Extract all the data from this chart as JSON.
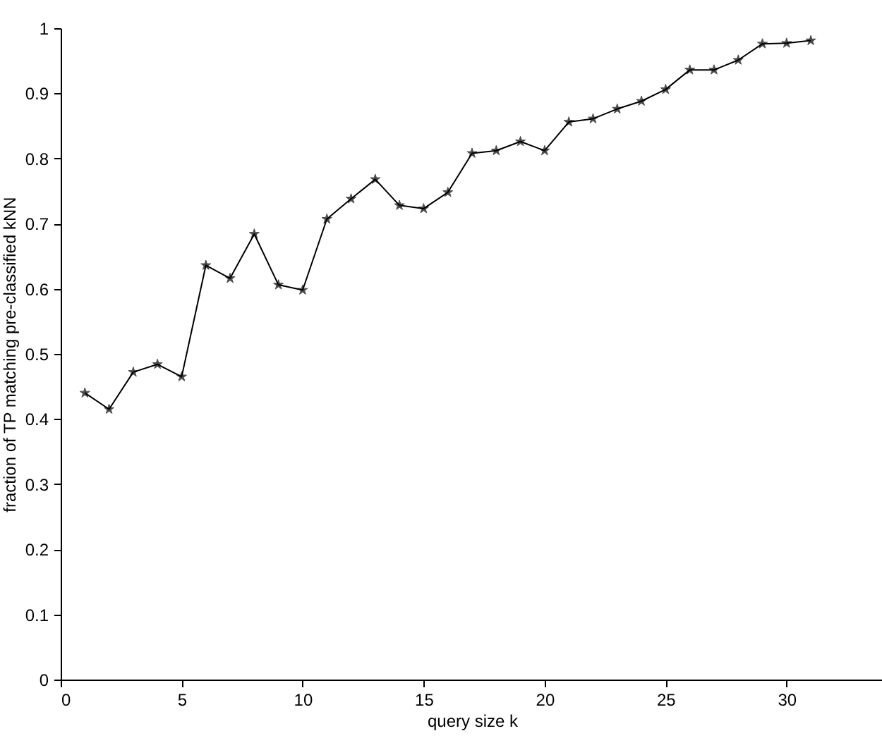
{
  "chart_data": {
    "type": "line",
    "xlabel": "query size k",
    "ylabel": "fraction of TP matching pre-classified kNN",
    "x": [
      1,
      2,
      3,
      4,
      5,
      6,
      7,
      8,
      9,
      10,
      11,
      12,
      13,
      14,
      15,
      16,
      17,
      18,
      19,
      20,
      21,
      22,
      23,
      24,
      25,
      26,
      27,
      28,
      29,
      30,
      31
    ],
    "series": [
      {
        "color": "#000000",
        "values": [
          0.44,
          0.415,
          0.472,
          0.484,
          0.465,
          0.636,
          0.616,
          0.684,
          0.606,
          0.598,
          0.707,
          0.738,
          0.768,
          0.728,
          0.723,
          0.748,
          0.808,
          0.812,
          0.826,
          0.812,
          0.856,
          0.861,
          0.876,
          0.888,
          0.906,
          0.936,
          0.936,
          0.951,
          0.976,
          0.977,
          0.981
        ]
      }
    ],
    "xlim": [
      0,
      34
    ],
    "xticks": [
      0,
      5,
      10,
      15,
      20,
      25,
      30
    ],
    "ylim": [
      0,
      1
    ],
    "yticks": [
      0,
      0.1,
      0.2,
      0.3,
      0.4,
      0.5,
      0.6,
      0.7,
      0.8,
      0.9,
      1
    ],
    "grid": false,
    "marker": "star",
    "line_style": "solid"
  }
}
